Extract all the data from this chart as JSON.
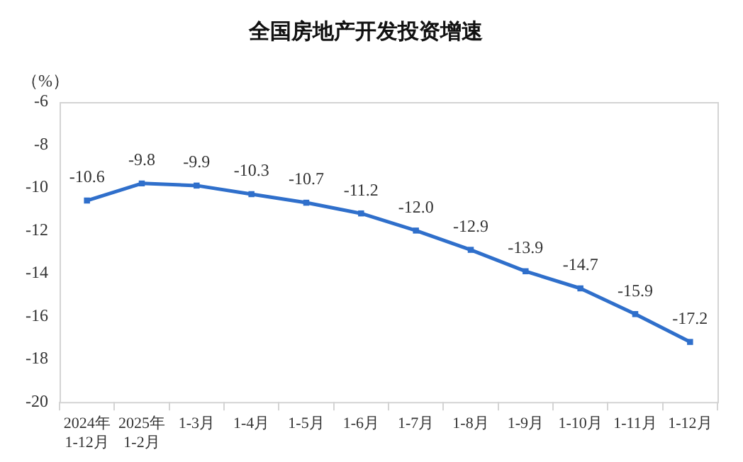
{
  "chart_data": {
    "type": "line",
    "title": "全国房地产开发投资增速",
    "ylabel": "（%）",
    "categories": [
      "2024年\n1-12月",
      "2025年\n1-2月",
      "1-3月",
      "1-4月",
      "1-5月",
      "1-6月",
      "1-7月",
      "1-8月",
      "1-9月",
      "1-10月",
      "1-11月",
      "1-12月"
    ],
    "series": [
      {
        "color": "#2f6fcb",
        "values": [
          -10.6,
          -9.8,
          -9.9,
          -10.3,
          -10.7,
          -11.2,
          -12.0,
          -12.9,
          -13.9,
          -14.7,
          -15.9,
          -17.2
        ],
        "value_labels": [
          "-10.6",
          "-9.8",
          "-9.9",
          "-10.3",
          "-10.7",
          "-11.2",
          "-12.0",
          "-12.9",
          "-13.9",
          "-14.7",
          "-15.9",
          "-17.2"
        ]
      }
    ],
    "ylim": [
      -20,
      -6
    ],
    "yticks": [
      -20,
      -18,
      -16,
      -14,
      -12,
      -10,
      -8,
      -6
    ],
    "grid": false,
    "legend": false,
    "marker": "square",
    "line_style": "solid"
  }
}
